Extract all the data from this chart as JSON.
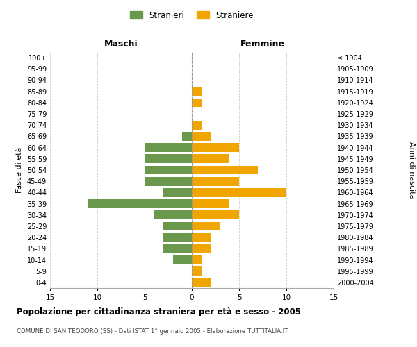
{
  "age_groups": [
    "0-4",
    "5-9",
    "10-14",
    "15-19",
    "20-24",
    "25-29",
    "30-34",
    "35-39",
    "40-44",
    "45-49",
    "50-54",
    "55-59",
    "60-64",
    "65-69",
    "70-74",
    "75-79",
    "80-84",
    "85-89",
    "90-94",
    "95-99",
    "100+"
  ],
  "birth_years": [
    "2000-2004",
    "1995-1999",
    "1990-1994",
    "1985-1989",
    "1980-1984",
    "1975-1979",
    "1970-1974",
    "1965-1969",
    "1960-1964",
    "1955-1959",
    "1950-1954",
    "1945-1949",
    "1940-1944",
    "1935-1939",
    "1930-1934",
    "1925-1929",
    "1920-1924",
    "1915-1919",
    "1910-1914",
    "1905-1909",
    "≤ 1904"
  ],
  "males": [
    0,
    0,
    2,
    3,
    3,
    3,
    4,
    11,
    3,
    5,
    5,
    5,
    5,
    1,
    0,
    0,
    0,
    0,
    0,
    0,
    0
  ],
  "females": [
    2,
    1,
    1,
    2,
    2,
    3,
    5,
    4,
    10,
    5,
    7,
    4,
    5,
    2,
    1,
    0,
    1,
    1,
    0,
    0,
    0
  ],
  "male_color": "#6a994e",
  "female_color": "#f0a500",
  "xlabel_left": "Maschi",
  "xlabel_right": "Femmine",
  "ylabel_left": "Fasce di età",
  "ylabel_right": "Anni di nascita",
  "legend_male": "Stranieri",
  "legend_female": "Straniere",
  "title": "Popolazione per cittadinanza straniera per età e sesso - 2005",
  "subtitle": "COMUNE DI SAN TEODORO (SS) - Dati ISTAT 1° gennaio 2005 - Elaborazione TUTTITALIA.IT",
  "xlim": 15,
  "background_color": "#ffffff",
  "grid_color": "#cccccc"
}
